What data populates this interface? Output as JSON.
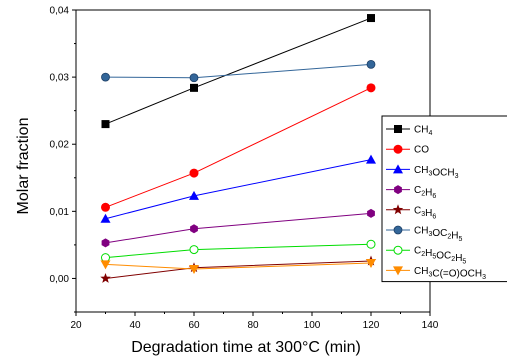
{
  "chart_data": {
    "type": "line",
    "title": "",
    "xlabel": "Degradation time at 300°C (min)",
    "ylabel": "Molar fraction",
    "xlim": [
      20,
      140
    ],
    "ylim": [
      -0.005,
      0.04
    ],
    "xticks": [
      "20",
      "40",
      "60",
      "80",
      "100",
      "120",
      "140"
    ],
    "xtick_values": [
      20,
      40,
      60,
      80,
      100,
      120,
      140
    ],
    "yticks": [
      "0,00",
      "0,01",
      "0,02",
      "0,03",
      "0,04"
    ],
    "ytick_values": [
      0,
      0.01,
      0.02,
      0.03,
      0.04
    ],
    "grid": false,
    "legend_position": "right",
    "x": [
      30,
      60,
      120
    ],
    "series": [
      {
        "name": "CH4",
        "name_parts": [
          [
            "CH",
            ""
          ],
          [
            "4",
            "sub"
          ]
        ],
        "values": [
          0.023,
          0.0284,
          0.0388
        ],
        "color": "#000000",
        "marker": "square"
      },
      {
        "name": "CO",
        "name_parts": [
          [
            "CO",
            ""
          ]
        ],
        "values": [
          0.0106,
          0.0157,
          0.0284
        ],
        "color": "#ff0000",
        "marker": "circle"
      },
      {
        "name": "CH3OCH3",
        "name_parts": [
          [
            "CH",
            ""
          ],
          [
            "3",
            "sub"
          ],
          [
            "OCH",
            ""
          ],
          [
            "3",
            "sub"
          ]
        ],
        "values": [
          0.0089,
          0.0123,
          0.0177
        ],
        "color": "#0000ff",
        "marker": "triangle-up"
      },
      {
        "name": "C2H6",
        "name_parts": [
          [
            "C",
            ""
          ],
          [
            "2",
            "sub"
          ],
          [
            "H",
            ""
          ],
          [
            "6",
            "sub"
          ]
        ],
        "values": [
          0.0053,
          0.0074,
          0.0097
        ],
        "color": "#800080",
        "marker": "hexagon"
      },
      {
        "name": "C3H6",
        "name_parts": [
          [
            "C",
            ""
          ],
          [
            "3",
            "sub"
          ],
          [
            "H",
            ""
          ],
          [
            "6",
            "sub"
          ]
        ],
        "values": [
          0.0,
          0.0016,
          0.0026
        ],
        "color": "#800000",
        "marker": "star"
      },
      {
        "name": "CH3OC2H5",
        "name_parts": [
          [
            "CH",
            ""
          ],
          [
            "3",
            "sub"
          ],
          [
            "OC",
            ""
          ],
          [
            "2",
            "sub"
          ],
          [
            "H",
            ""
          ],
          [
            "5",
            "sub"
          ]
        ],
        "values": [
          0.03,
          0.0299,
          0.0319
        ],
        "color": "#336699",
        "marker": "ball"
      },
      {
        "name": "C2H5OC2H5",
        "name_parts": [
          [
            "C",
            ""
          ],
          [
            "2",
            "sub"
          ],
          [
            "H",
            ""
          ],
          [
            "5",
            "sub"
          ],
          [
            "OC",
            ""
          ],
          [
            "2",
            "sub"
          ],
          [
            "H",
            ""
          ],
          [
            "5",
            "sub"
          ]
        ],
        "values": [
          0.0031,
          0.0043,
          0.0051
        ],
        "color": "#00dd00",
        "marker": "circle-open"
      },
      {
        "name": "CH3C(=O)OCH3",
        "name_parts": [
          [
            "CH",
            ""
          ],
          [
            "3",
            "sub"
          ],
          [
            "C(=O)OCH",
            ""
          ],
          [
            "3",
            "sub"
          ]
        ],
        "values": [
          0.0021,
          0.0014,
          0.0023
        ],
        "color": "#ff8c00",
        "marker": "triangle-down"
      }
    ]
  }
}
